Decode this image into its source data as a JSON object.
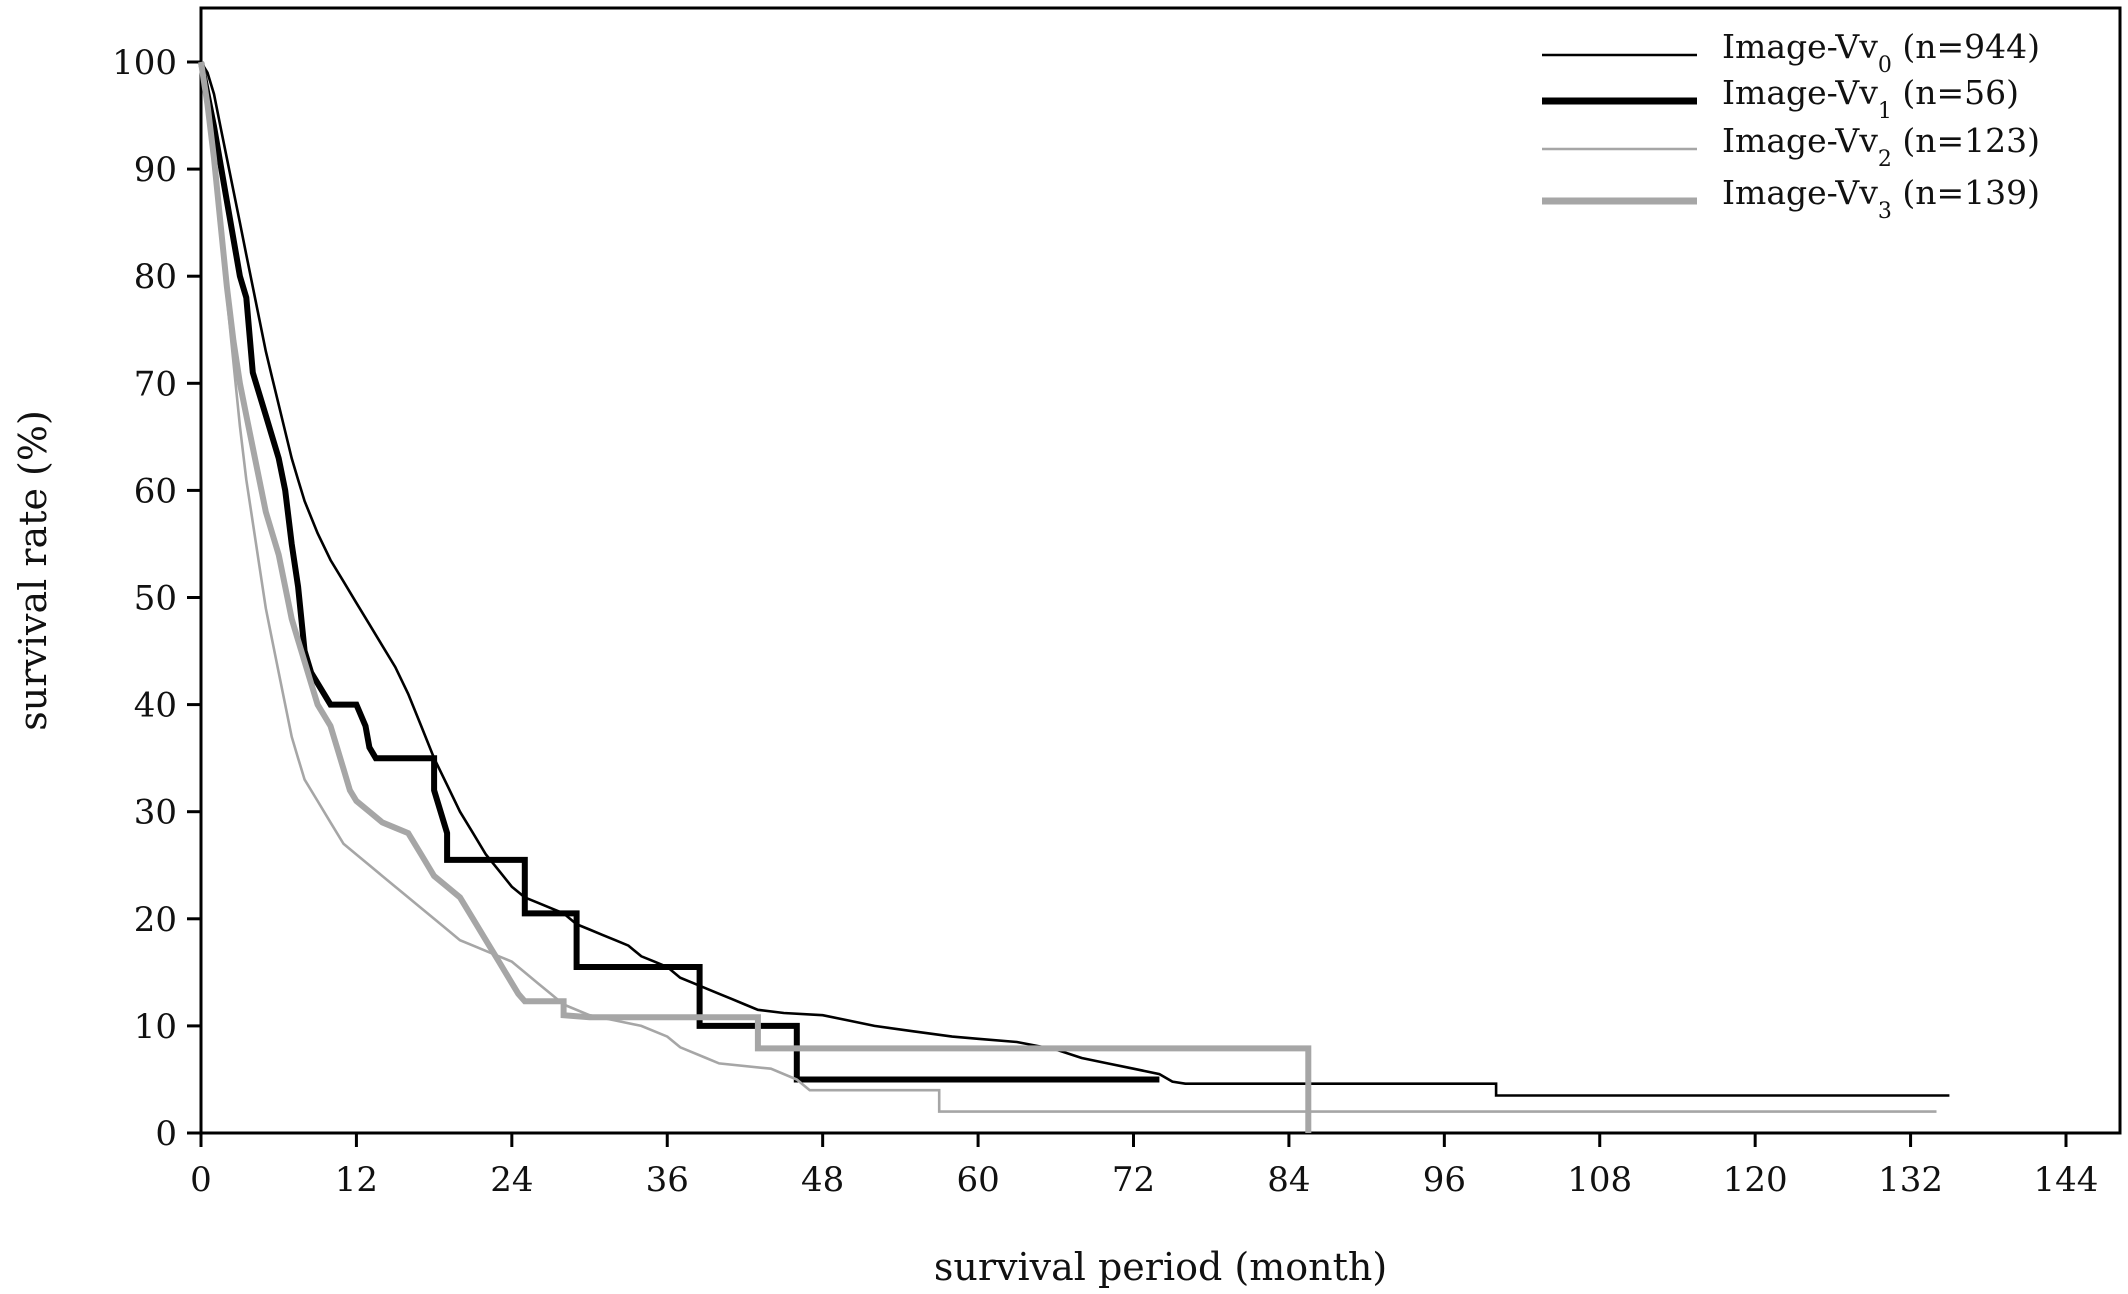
{
  "chart_data": {
    "type": "line",
    "xlabel": "survival period (month)",
    "ylabel": "survival rate (%)",
    "xlim": [
      0,
      144
    ],
    "ylim": [
      0,
      100
    ],
    "x_ticks": [
      0,
      12,
      24,
      36,
      48,
      60,
      72,
      84,
      96,
      108,
      120,
      132,
      144
    ],
    "y_ticks": [
      0,
      10,
      20,
      30,
      40,
      50,
      60,
      70,
      80,
      90,
      100
    ],
    "legend_position": "top-right",
    "series": [
      {
        "name_main": "Image-Vv",
        "name_sub": "0",
        "name_n": " (n=944)",
        "color": "#000000",
        "stroke": "thin",
        "points": [
          [
            0,
            100
          ],
          [
            0.5,
            99
          ],
          [
            1,
            97
          ],
          [
            1.5,
            94
          ],
          [
            2,
            91
          ],
          [
            2.5,
            88
          ],
          [
            3,
            85
          ],
          [
            3.5,
            82
          ],
          [
            4,
            79
          ],
          [
            4.5,
            76
          ],
          [
            5,
            73
          ],
          [
            5.5,
            70.5
          ],
          [
            6,
            68
          ],
          [
            6.5,
            65.5
          ],
          [
            7,
            63
          ],
          [
            7.5,
            61
          ],
          [
            8,
            59
          ],
          [
            9,
            56
          ],
          [
            10,
            53.5
          ],
          [
            11,
            51.5
          ],
          [
            12,
            49.5
          ],
          [
            13,
            47.5
          ],
          [
            14,
            45.5
          ],
          [
            15,
            43.5
          ],
          [
            16,
            41
          ],
          [
            17,
            38
          ],
          [
            18,
            35
          ],
          [
            19,
            32.5
          ],
          [
            20,
            30
          ],
          [
            21,
            28
          ],
          [
            22,
            26
          ],
          [
            23,
            24.5
          ],
          [
            24,
            23
          ],
          [
            25,
            22
          ],
          [
            26,
            21.5
          ],
          [
            27,
            21
          ],
          [
            28,
            20.5
          ],
          [
            29,
            19.5
          ],
          [
            30,
            19
          ],
          [
            31,
            18.5
          ],
          [
            32,
            18
          ],
          [
            33,
            17.5
          ],
          [
            34,
            16.5
          ],
          [
            35,
            16
          ],
          [
            36,
            15.5
          ],
          [
            37,
            14.5
          ],
          [
            38,
            14
          ],
          [
            39,
            13.5
          ],
          [
            40,
            13
          ],
          [
            41,
            12.5
          ],
          [
            42,
            12
          ],
          [
            43,
            11.5
          ],
          [
            45,
            11.2
          ],
          [
            48,
            11
          ],
          [
            50,
            10.5
          ],
          [
            52,
            10
          ],
          [
            55,
            9.5
          ],
          [
            58,
            9
          ],
          [
            60,
            8.8
          ],
          [
            63,
            8.5
          ],
          [
            66,
            7.8
          ],
          [
            68,
            7
          ],
          [
            70,
            6.5
          ],
          [
            72,
            6
          ],
          [
            74,
            5.5
          ],
          [
            75,
            4.8
          ],
          [
            76,
            4.6
          ],
          [
            86,
            4.6
          ],
          [
            100,
            4.6
          ],
          [
            100,
            3.5
          ],
          [
            135,
            3.5
          ]
        ]
      },
      {
        "name_main": "Image-Vv",
        "name_sub": "1",
        "name_n": " (n=56)",
        "color": "#000000",
        "stroke": "thick",
        "points": [
          [
            0,
            100
          ],
          [
            1,
            94
          ],
          [
            2,
            87
          ],
          [
            3,
            80
          ],
          [
            3.5,
            78
          ],
          [
            4,
            71
          ],
          [
            5,
            67
          ],
          [
            6,
            63
          ],
          [
            6.5,
            60
          ],
          [
            7,
            55
          ],
          [
            7.5,
            51
          ],
          [
            8,
            45
          ],
          [
            8.5,
            43
          ],
          [
            10,
            40
          ],
          [
            12,
            40
          ],
          [
            12.7,
            38
          ],
          [
            13,
            36
          ],
          [
            13.5,
            35
          ],
          [
            18,
            35
          ],
          [
            18,
            32
          ],
          [
            19,
            28
          ],
          [
            19,
            25.5
          ],
          [
            25,
            25.5
          ],
          [
            25,
            20.5
          ],
          [
            29,
            20.5
          ],
          [
            29,
            15.5
          ],
          [
            38.5,
            15.5
          ],
          [
            38.5,
            10
          ],
          [
            46,
            10
          ],
          [
            46,
            5
          ],
          [
            74,
            5
          ]
        ]
      },
      {
        "name_main": "Image-Vv",
        "name_sub": "2",
        "name_n": " (n=123)",
        "color": "#a6a6a6",
        "stroke": "thin",
        "points": [
          [
            0,
            100
          ],
          [
            0.5,
            96
          ],
          [
            1,
            90
          ],
          [
            1.5,
            84
          ],
          [
            2,
            78
          ],
          [
            2.5,
            72
          ],
          [
            3,
            66
          ],
          [
            3.5,
            61
          ],
          [
            4,
            57
          ],
          [
            4.5,
            53
          ],
          [
            5,
            49
          ],
          [
            5.5,
            46
          ],
          [
            6,
            43
          ],
          [
            6.5,
            40
          ],
          [
            7,
            37
          ],
          [
            7.5,
            35
          ],
          [
            8,
            33
          ],
          [
            9,
            31
          ],
          [
            10,
            29
          ],
          [
            11,
            27
          ],
          [
            12,
            26
          ],
          [
            13,
            25
          ],
          [
            14,
            24
          ],
          [
            15,
            23
          ],
          [
            16,
            22
          ],
          [
            17,
            21
          ],
          [
            18,
            20
          ],
          [
            19,
            19
          ],
          [
            20,
            18
          ],
          [
            21,
            17.5
          ],
          [
            22,
            17
          ],
          [
            23,
            16.5
          ],
          [
            24,
            16
          ],
          [
            25,
            15
          ],
          [
            26,
            14
          ],
          [
            27,
            13
          ],
          [
            28,
            12
          ],
          [
            30,
            11
          ],
          [
            32,
            10.5
          ],
          [
            34,
            10
          ],
          [
            36,
            9
          ],
          [
            37,
            8
          ],
          [
            39,
            7
          ],
          [
            40,
            6.5
          ],
          [
            44,
            6
          ],
          [
            46,
            5
          ],
          [
            47,
            4
          ],
          [
            57,
            4
          ],
          [
            57,
            2
          ],
          [
            134,
            2
          ]
        ]
      },
      {
        "name_main": "Image-Vv",
        "name_sub": "3",
        "name_n": " (n=139)",
        "color": "#a6a6a6",
        "stroke": "thick",
        "points": [
          [
            0,
            100
          ],
          [
            0.5,
            96
          ],
          [
            1,
            91
          ],
          [
            1.5,
            85
          ],
          [
            2,
            79
          ],
          [
            2.5,
            74
          ],
          [
            3,
            70
          ],
          [
            3.5,
            67
          ],
          [
            4,
            64
          ],
          [
            4.5,
            61
          ],
          [
            5,
            58
          ],
          [
            5.5,
            56
          ],
          [
            6,
            54
          ],
          [
            6.5,
            51
          ],
          [
            7,
            48
          ],
          [
            7.5,
            46
          ],
          [
            8,
            44
          ],
          [
            8.5,
            42
          ],
          [
            9,
            40
          ],
          [
            10,
            38
          ],
          [
            10.5,
            36
          ],
          [
            11,
            34
          ],
          [
            11.5,
            32
          ],
          [
            12,
            31
          ],
          [
            13,
            30
          ],
          [
            14,
            29
          ],
          [
            15,
            28.5
          ],
          [
            16,
            28
          ],
          [
            17,
            26
          ],
          [
            18,
            24
          ],
          [
            19,
            23
          ],
          [
            20,
            22
          ],
          [
            21,
            20
          ],
          [
            22,
            18
          ],
          [
            23,
            16
          ],
          [
            24,
            14
          ],
          [
            24.5,
            13
          ],
          [
            25,
            12.3
          ],
          [
            28,
            12.3
          ],
          [
            28,
            11
          ],
          [
            30,
            10.8
          ],
          [
            43,
            10.8
          ],
          [
            43,
            7.9
          ],
          [
            85.5,
            7.9
          ],
          [
            85.5,
            0
          ]
        ]
      }
    ]
  }
}
